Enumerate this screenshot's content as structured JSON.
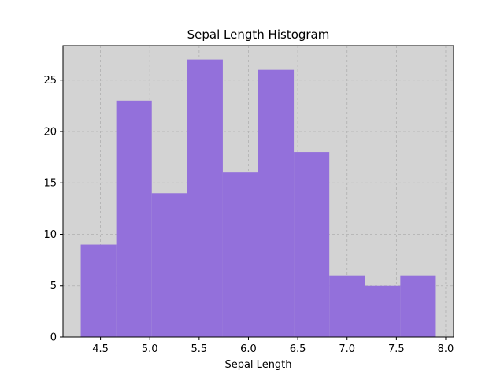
{
  "chart_data": {
    "type": "bar",
    "title": "Sepal Length Histogram",
    "xlabel": "Sepal Length",
    "ylabel": "",
    "bin_edges": [
      4.3,
      4.66,
      5.02,
      5.38,
      5.74,
      6.1,
      6.46,
      6.82,
      7.18,
      7.54,
      7.9
    ],
    "values": [
      9,
      23,
      14,
      27,
      16,
      26,
      18,
      6,
      5,
      6
    ],
    "xlim": [
      4.12,
      8.08
    ],
    "ylim": [
      0,
      28.35
    ],
    "xticks": [
      "4.5",
      "5.0",
      "5.5",
      "6.0",
      "6.5",
      "7.0",
      "7.5",
      "8.0"
    ],
    "yticks": [
      "0",
      "5",
      "10",
      "15",
      "20",
      "25"
    ],
    "grid": true,
    "bar_color": "#9370db",
    "background_color": "#d3d3d3"
  }
}
